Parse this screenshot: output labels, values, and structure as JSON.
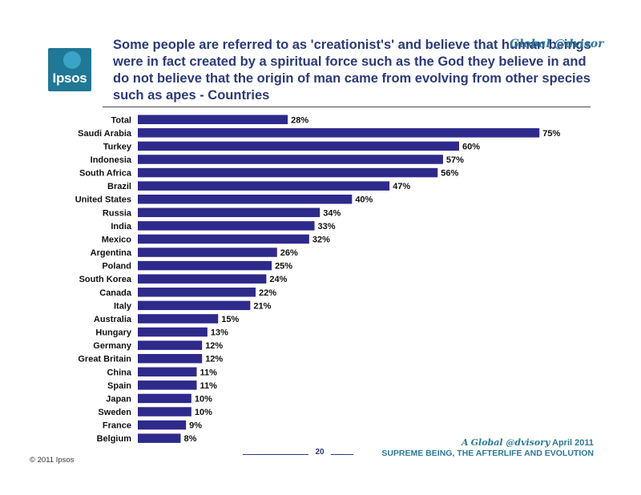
{
  "header": {
    "logo_text": "Ipsos",
    "title": "Some people are referred to as 'creationist's' and believe that human beings were in fact created by a spiritual force such as the God they believe in and do not believe that the origin of man came from evolving from other species such as apes - Countries",
    "brand": "Global @dvisor"
  },
  "chart_data": {
    "type": "bar",
    "orientation": "horizontal",
    "categories": [
      "Total",
      "Saudi Arabia",
      "Turkey",
      "Indonesia",
      "South Africa",
      "Brazil",
      "United States",
      "Russia",
      "India",
      "Mexico",
      "Argentina",
      "Poland",
      "South Korea",
      "Canada",
      "Italy",
      "Australia",
      "Hungary",
      "Germany",
      "Great Britain",
      "China",
      "Spain",
      "Japan",
      "Sweden",
      "France",
      "Belgium"
    ],
    "values": [
      28,
      75,
      60,
      57,
      56,
      47,
      40,
      34,
      33,
      32,
      26,
      25,
      24,
      22,
      21,
      15,
      13,
      12,
      12,
      11,
      11,
      10,
      10,
      9,
      8
    ],
    "value_suffix": "%",
    "bar_color": "#2e2a8c",
    "title": "",
    "xlabel": "",
    "ylabel": "",
    "xlim": [
      0,
      100
    ],
    "grid": false,
    "legend": "none"
  },
  "footer": {
    "page_number": "20",
    "copyright": "© 2011 Ipsos",
    "report_prefix": "A",
    "report_brand": "Global @dvisory",
    "report_date": "April 2011",
    "report_title": "SUPREME BEING, THE AFTERLIFE AND EVOLUTION"
  }
}
